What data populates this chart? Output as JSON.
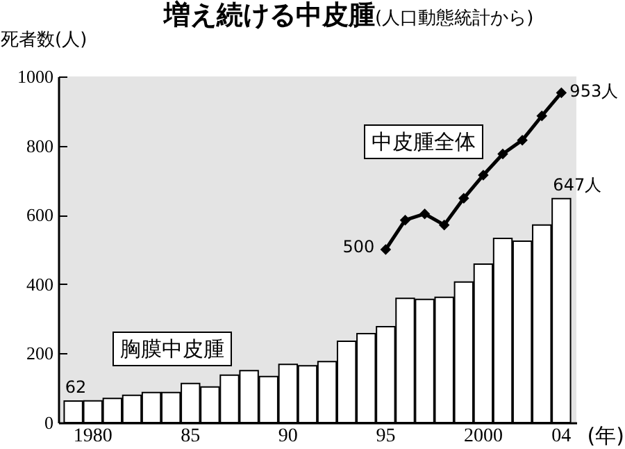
{
  "chart_data": {
    "type": "bar",
    "title": "増え続ける中皮腫",
    "subtitle": "(人口動態統計から)",
    "ylabel": "死者数(人)",
    "xlabel": "(年)",
    "categories": [
      null,
      "1980",
      null,
      null,
      null,
      null,
      "85",
      null,
      null,
      null,
      null,
      "90",
      null,
      null,
      null,
      null,
      "95",
      null,
      null,
      null,
      null,
      "2000",
      null,
      null,
      null,
      "04"
    ],
    "series": [
      {
        "name": "胸膜中皮腫",
        "color": "#ffffff",
        "values": [
          62,
          63,
          70,
          79,
          87,
          87,
          113,
          103,
          137,
          150,
          133,
          168,
          164,
          176,
          235,
          257,
          277,
          359,
          356,
          362,
          406,
          458,
          532,
          524,
          571,
          647
        ],
        "value_labels": [
          "62",
          null,
          null,
          null,
          null,
          null,
          null,
          null,
          null,
          null,
          null,
          null,
          null,
          null,
          null,
          null,
          null,
          null,
          null,
          null,
          null,
          null,
          null,
          null,
          null,
          "647人"
        ]
      },
      {
        "name": "中皮腫全体",
        "type": "line",
        "color": "#000000",
        "values": [
          null,
          null,
          null,
          null,
          null,
          null,
          null,
          null,
          null,
          null,
          null,
          null,
          null,
          null,
          null,
          null,
          500,
          585,
          603,
          571,
          648,
          715,
          776,
          816,
          886,
          953
        ],
        "value_labels": [
          null,
          null,
          null,
          null,
          null,
          null,
          null,
          null,
          null,
          null,
          null,
          null,
          null,
          null,
          null,
          null,
          "500",
          null,
          null,
          null,
          null,
          null,
          null,
          null,
          null,
          "953人"
        ]
      }
    ],
    "ylim": [
      0,
      1000
    ],
    "yticks": [
      0,
      200,
      400,
      600,
      800,
      1000
    ],
    "grid": false,
    "legend": false,
    "marker": "diamond"
  }
}
